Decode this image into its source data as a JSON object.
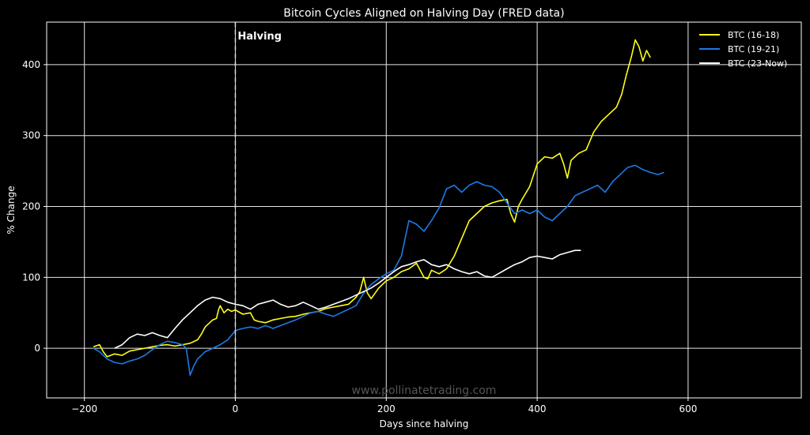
{
  "chart_data": {
    "type": "line",
    "title": "Bitcoin Cycles Aligned on Halving Day  (FRED data)",
    "xlabel": "Days since halving",
    "ylabel": "% Change",
    "xlim": [
      -250,
      750
    ],
    "ylim": [
      -70,
      460
    ],
    "x_ticks": [
      -200,
      0,
      200,
      400,
      600
    ],
    "y_ticks": [
      0,
      100,
      200,
      300,
      400
    ],
    "x_tick_labels": [
      "−200",
      "0",
      "200",
      "400",
      "600"
    ],
    "y_tick_labels": [
      "0",
      "100",
      "200",
      "300",
      "400"
    ],
    "grid": true,
    "legend_position": "top-right",
    "vline": {
      "x": 0,
      "label": "Halving",
      "color": "#dddddd"
    },
    "watermark": "www.pollinatetrading.com",
    "colors": {
      "background": "#000000",
      "grid": "#e6e6e6",
      "text": "#ffffff",
      "watermark": "#555555"
    },
    "series": [
      {
        "name": "BTC (16-18)",
        "color": "#ffff1a",
        "points": [
          [
            -188,
            2
          ],
          [
            -180,
            5
          ],
          [
            -175,
            -5
          ],
          [
            -170,
            -12
          ],
          [
            -160,
            -8
          ],
          [
            -150,
            -10
          ],
          [
            -140,
            -4
          ],
          [
            -130,
            -2
          ],
          [
            -120,
            0
          ],
          [
            -110,
            2
          ],
          [
            -100,
            4
          ],
          [
            -90,
            5
          ],
          [
            -80,
            3
          ],
          [
            -70,
            5
          ],
          [
            -60,
            7
          ],
          [
            -50,
            12
          ],
          [
            -45,
            20
          ],
          [
            -40,
            30
          ],
          [
            -35,
            35
          ],
          [
            -30,
            40
          ],
          [
            -25,
            42
          ],
          [
            -22,
            55
          ],
          [
            -20,
            60
          ],
          [
            -15,
            50
          ],
          [
            -10,
            55
          ],
          [
            -5,
            52
          ],
          [
            0,
            54
          ],
          [
            10,
            48
          ],
          [
            20,
            50
          ],
          [
            25,
            40
          ],
          [
            30,
            38
          ],
          [
            40,
            36
          ],
          [
            50,
            40
          ],
          [
            60,
            42
          ],
          [
            70,
            44
          ],
          [
            80,
            45
          ],
          [
            90,
            48
          ],
          [
            100,
            50
          ],
          [
            110,
            52
          ],
          [
            120,
            56
          ],
          [
            130,
            58
          ],
          [
            140,
            60
          ],
          [
            150,
            62
          ],
          [
            160,
            72
          ],
          [
            165,
            80
          ],
          [
            170,
            100
          ],
          [
            175,
            78
          ],
          [
            180,
            70
          ],
          [
            190,
            85
          ],
          [
            200,
            95
          ],
          [
            210,
            100
          ],
          [
            220,
            108
          ],
          [
            230,
            112
          ],
          [
            240,
            120
          ],
          [
            245,
            110
          ],
          [
            250,
            100
          ],
          [
            255,
            98
          ],
          [
            260,
            110
          ],
          [
            270,
            105
          ],
          [
            280,
            112
          ],
          [
            290,
            130
          ],
          [
            300,
            155
          ],
          [
            310,
            180
          ],
          [
            320,
            190
          ],
          [
            330,
            200
          ],
          [
            340,
            205
          ],
          [
            350,
            208
          ],
          [
            360,
            210
          ],
          [
            365,
            190
          ],
          [
            370,
            178
          ],
          [
            375,
            200
          ],
          [
            380,
            210
          ],
          [
            390,
            228
          ],
          [
            400,
            260
          ],
          [
            410,
            270
          ],
          [
            420,
            268
          ],
          [
            430,
            275
          ],
          [
            435,
            260
          ],
          [
            440,
            240
          ],
          [
            445,
            265
          ],
          [
            455,
            275
          ],
          [
            465,
            280
          ],
          [
            475,
            305
          ],
          [
            485,
            320
          ],
          [
            495,
            330
          ],
          [
            505,
            340
          ],
          [
            512,
            358
          ],
          [
            518,
            385
          ],
          [
            525,
            412
          ],
          [
            530,
            435
          ],
          [
            535,
            425
          ],
          [
            540,
            405
          ],
          [
            545,
            420
          ],
          [
            550,
            410
          ]
        ]
      },
      {
        "name": "BTC (19-21)",
        "color": "#1e7ae6",
        "points": [
          [
            -188,
            0
          ],
          [
            -180,
            -5
          ],
          [
            -170,
            -15
          ],
          [
            -160,
            -20
          ],
          [
            -150,
            -22
          ],
          [
            -140,
            -18
          ],
          [
            -130,
            -15
          ],
          [
            -120,
            -10
          ],
          [
            -110,
            -2
          ],
          [
            -100,
            5
          ],
          [
            -90,
            10
          ],
          [
            -80,
            8
          ],
          [
            -70,
            5
          ],
          [
            -65,
            0
          ],
          [
            -60,
            -38
          ],
          [
            -55,
            -25
          ],
          [
            -50,
            -15
          ],
          [
            -40,
            -5
          ],
          [
            -30,
            0
          ],
          [
            -20,
            5
          ],
          [
            -10,
            12
          ],
          [
            0,
            25
          ],
          [
            10,
            28
          ],
          [
            20,
            30
          ],
          [
            30,
            28
          ],
          [
            40,
            32
          ],
          [
            50,
            28
          ],
          [
            60,
            32
          ],
          [
            70,
            36
          ],
          [
            80,
            40
          ],
          [
            90,
            45
          ],
          [
            100,
            50
          ],
          [
            110,
            52
          ],
          [
            120,
            48
          ],
          [
            130,
            45
          ],
          [
            140,
            50
          ],
          [
            150,
            55
          ],
          [
            160,
            60
          ],
          [
            170,
            78
          ],
          [
            180,
            90
          ],
          [
            190,
            98
          ],
          [
            200,
            105
          ],
          [
            210,
            110
          ],
          [
            220,
            130
          ],
          [
            230,
            180
          ],
          [
            240,
            175
          ],
          [
            250,
            165
          ],
          [
            260,
            180
          ],
          [
            270,
            198
          ],
          [
            280,
            225
          ],
          [
            290,
            230
          ],
          [
            300,
            220
          ],
          [
            310,
            230
          ],
          [
            320,
            235
          ],
          [
            330,
            230
          ],
          [
            340,
            228
          ],
          [
            350,
            220
          ],
          [
            360,
            205
          ],
          [
            370,
            190
          ],
          [
            380,
            195
          ],
          [
            390,
            190
          ],
          [
            400,
            195
          ],
          [
            410,
            185
          ],
          [
            420,
            180
          ],
          [
            430,
            190
          ],
          [
            440,
            200
          ],
          [
            450,
            215
          ],
          [
            460,
            220
          ],
          [
            470,
            225
          ],
          [
            480,
            230
          ],
          [
            490,
            220
          ],
          [
            500,
            235
          ],
          [
            510,
            245
          ],
          [
            520,
            255
          ],
          [
            530,
            258
          ],
          [
            540,
            252
          ],
          [
            550,
            248
          ],
          [
            560,
            245
          ],
          [
            568,
            248
          ]
        ]
      },
      {
        "name": "BTC (23-Now)",
        "color": "#ffffff",
        "points": [
          [
            -160,
            0
          ],
          [
            -150,
            5
          ],
          [
            -140,
            15
          ],
          [
            -130,
            20
          ],
          [
            -120,
            18
          ],
          [
            -110,
            22
          ],
          [
            -100,
            18
          ],
          [
            -90,
            15
          ],
          [
            -80,
            28
          ],
          [
            -70,
            40
          ],
          [
            -60,
            50
          ],
          [
            -50,
            60
          ],
          [
            -40,
            68
          ],
          [
            -30,
            72
          ],
          [
            -20,
            70
          ],
          [
            -10,
            65
          ],
          [
            0,
            62
          ],
          [
            10,
            60
          ],
          [
            20,
            55
          ],
          [
            30,
            62
          ],
          [
            40,
            65
          ],
          [
            50,
            68
          ],
          [
            60,
            62
          ],
          [
            70,
            58
          ],
          [
            80,
            60
          ],
          [
            90,
            65
          ],
          [
            100,
            60
          ],
          [
            110,
            55
          ],
          [
            120,
            58
          ],
          [
            130,
            62
          ],
          [
            140,
            66
          ],
          [
            150,
            70
          ],
          [
            160,
            75
          ],
          [
            170,
            80
          ],
          [
            180,
            85
          ],
          [
            190,
            92
          ],
          [
            200,
            100
          ],
          [
            210,
            108
          ],
          [
            220,
            115
          ],
          [
            230,
            118
          ],
          [
            240,
            122
          ],
          [
            250,
            125
          ],
          [
            260,
            118
          ],
          [
            270,
            115
          ],
          [
            280,
            118
          ],
          [
            290,
            112
          ],
          [
            300,
            108
          ],
          [
            310,
            105
          ],
          [
            320,
            108
          ],
          [
            330,
            102
          ],
          [
            340,
            100
          ],
          [
            350,
            106
          ],
          [
            360,
            112
          ],
          [
            370,
            118
          ],
          [
            380,
            122
          ],
          [
            390,
            128
          ],
          [
            400,
            130
          ],
          [
            410,
            128
          ],
          [
            420,
            126
          ],
          [
            430,
            132
          ],
          [
            440,
            135
          ],
          [
            450,
            138
          ],
          [
            458,
            138
          ]
        ]
      }
    ]
  }
}
